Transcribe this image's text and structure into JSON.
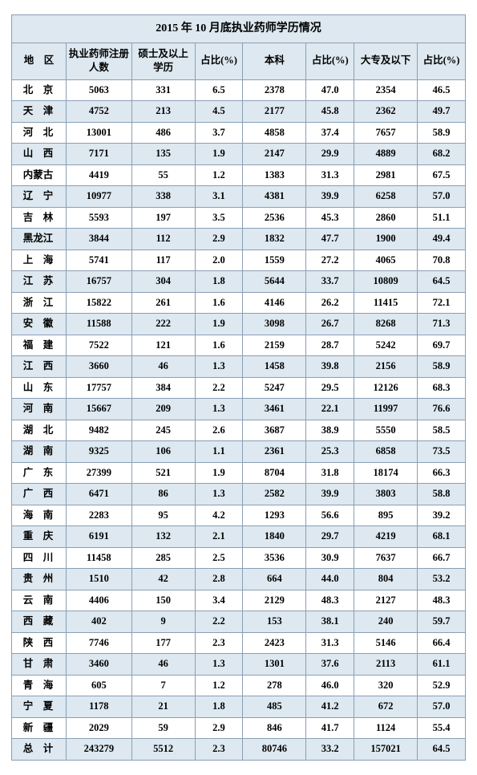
{
  "title": "2015 年 10 月底执业药师学历情况",
  "columns": [
    "地　区",
    "执业药师注册人数",
    "硕士及以上学历",
    "占比(%)",
    "本科",
    "占比(%)",
    "大专及以下",
    "占比(%)"
  ],
  "rows": [
    {
      "region": "北　京",
      "spaced": false,
      "total": "5063",
      "masters": "331",
      "mpct": "6.5",
      "bachelor": "2378",
      "bpct": "47.0",
      "below": "2354",
      "blpct": "46.5"
    },
    {
      "region": "天　津",
      "spaced": false,
      "total": "4752",
      "masters": "213",
      "mpct": "4.5",
      "bachelor": "2177",
      "bpct": "45.8",
      "below": "2362",
      "blpct": "49.7"
    },
    {
      "region": "河　北",
      "spaced": false,
      "total": "13001",
      "masters": "486",
      "mpct": "3.7",
      "bachelor": "4858",
      "bpct": "37.4",
      "below": "7657",
      "blpct": "58.9"
    },
    {
      "region": "山　西",
      "spaced": false,
      "total": "7171",
      "masters": "135",
      "mpct": "1.9",
      "bachelor": "2147",
      "bpct": "29.9",
      "below": "4889",
      "blpct": "68.2"
    },
    {
      "region": "内蒙古",
      "spaced": true,
      "total": "4419",
      "masters": "55",
      "mpct": "1.2",
      "bachelor": "1383",
      "bpct": "31.3",
      "below": "2981",
      "blpct": "67.5"
    },
    {
      "region": "辽　宁",
      "spaced": false,
      "total": "10977",
      "masters": "338",
      "mpct": "3.1",
      "bachelor": "4381",
      "bpct": "39.9",
      "below": "6258",
      "blpct": "57.0"
    },
    {
      "region": "吉　林",
      "spaced": false,
      "total": "5593",
      "masters": "197",
      "mpct": "3.5",
      "bachelor": "2536",
      "bpct": "45.3",
      "below": "2860",
      "blpct": "51.1"
    },
    {
      "region": "黑龙江",
      "spaced": true,
      "total": "3844",
      "masters": "112",
      "mpct": "2.9",
      "bachelor": "1832",
      "bpct": "47.7",
      "below": "1900",
      "blpct": "49.4"
    },
    {
      "region": "上　海",
      "spaced": false,
      "total": "5741",
      "masters": "117",
      "mpct": "2.0",
      "bachelor": "1559",
      "bpct": "27.2",
      "below": "4065",
      "blpct": "70.8"
    },
    {
      "region": "江　苏",
      "spaced": false,
      "total": "16757",
      "masters": "304",
      "mpct": "1.8",
      "bachelor": "5644",
      "bpct": "33.7",
      "below": "10809",
      "blpct": "64.5"
    },
    {
      "region": "浙　江",
      "spaced": false,
      "total": "15822",
      "masters": "261",
      "mpct": "1.6",
      "bachelor": "4146",
      "bpct": "26.2",
      "below": "11415",
      "blpct": "72.1"
    },
    {
      "region": "安　徽",
      "spaced": false,
      "total": "11588",
      "masters": "222",
      "mpct": "1.9",
      "bachelor": "3098",
      "bpct": "26.7",
      "below": "8268",
      "blpct": "71.3"
    },
    {
      "region": "福　建",
      "spaced": false,
      "total": "7522",
      "masters": "121",
      "mpct": "1.6",
      "bachelor": "2159",
      "bpct": "28.7",
      "below": "5242",
      "blpct": "69.7"
    },
    {
      "region": "江　西",
      "spaced": false,
      "total": "3660",
      "masters": "46",
      "mpct": "1.3",
      "bachelor": "1458",
      "bpct": "39.8",
      "below": "2156",
      "blpct": "58.9"
    },
    {
      "region": "山　东",
      "spaced": false,
      "total": "17757",
      "masters": "384",
      "mpct": "2.2",
      "bachelor": "5247",
      "bpct": "29.5",
      "below": "12126",
      "blpct": "68.3"
    },
    {
      "region": "河　南",
      "spaced": false,
      "total": "15667",
      "masters": "209",
      "mpct": "1.3",
      "bachelor": "3461",
      "bpct": "22.1",
      "below": "11997",
      "blpct": "76.6"
    },
    {
      "region": "湖　北",
      "spaced": false,
      "total": "9482",
      "masters": "245",
      "mpct": "2.6",
      "bachelor": "3687",
      "bpct": "38.9",
      "below": "5550",
      "blpct": "58.5"
    },
    {
      "region": "湖　南",
      "spaced": false,
      "total": "9325",
      "masters": "106",
      "mpct": "1.1",
      "bachelor": "2361",
      "bpct": "25.3",
      "below": "6858",
      "blpct": "73.5"
    },
    {
      "region": "广　东",
      "spaced": false,
      "total": "27399",
      "masters": "521",
      "mpct": "1.9",
      "bachelor": "8704",
      "bpct": "31.8",
      "below": "18174",
      "blpct": "66.3"
    },
    {
      "region": "广　西",
      "spaced": false,
      "total": "6471",
      "masters": "86",
      "mpct": "1.3",
      "bachelor": "2582",
      "bpct": "39.9",
      "below": "3803",
      "blpct": "58.8"
    },
    {
      "region": "海　南",
      "spaced": false,
      "total": "2283",
      "masters": "95",
      "mpct": "4.2",
      "bachelor": "1293",
      "bpct": "56.6",
      "below": "895",
      "blpct": "39.2"
    },
    {
      "region": "重　庆",
      "spaced": false,
      "total": "6191",
      "masters": "132",
      "mpct": "2.1",
      "bachelor": "1840",
      "bpct": "29.7",
      "below": "4219",
      "blpct": "68.1"
    },
    {
      "region": "四　川",
      "spaced": false,
      "total": "11458",
      "masters": "285",
      "mpct": "2.5",
      "bachelor": "3536",
      "bpct": "30.9",
      "below": "7637",
      "blpct": "66.7"
    },
    {
      "region": "贵　州",
      "spaced": false,
      "total": "1510",
      "masters": "42",
      "mpct": "2.8",
      "bachelor": "664",
      "bpct": "44.0",
      "below": "804",
      "blpct": "53.2"
    },
    {
      "region": "云　南",
      "spaced": false,
      "total": "4406",
      "masters": "150",
      "mpct": "3.4",
      "bachelor": "2129",
      "bpct": "48.3",
      "below": "2127",
      "blpct": "48.3"
    },
    {
      "region": "西　藏",
      "spaced": false,
      "total": "402",
      "masters": "9",
      "mpct": "2.2",
      "bachelor": "153",
      "bpct": "38.1",
      "below": "240",
      "blpct": "59.7"
    },
    {
      "region": "陕　西",
      "spaced": false,
      "total": "7746",
      "masters": "177",
      "mpct": "2.3",
      "bachelor": "2423",
      "bpct": "31.3",
      "below": "5146",
      "blpct": "66.4"
    },
    {
      "region": "甘　肃",
      "spaced": false,
      "total": "3460",
      "masters": "46",
      "mpct": "1.3",
      "bachelor": "1301",
      "bpct": "37.6",
      "below": "2113",
      "blpct": "61.1"
    },
    {
      "region": "青　海",
      "spaced": false,
      "total": "605",
      "masters": "7",
      "mpct": "1.2",
      "bachelor": "278",
      "bpct": "46.0",
      "below": "320",
      "blpct": "52.9"
    },
    {
      "region": "宁　夏",
      "spaced": false,
      "total": "1178",
      "masters": "21",
      "mpct": "1.8",
      "bachelor": "485",
      "bpct": "41.2",
      "below": "672",
      "blpct": "57.0"
    },
    {
      "region": "新　疆",
      "spaced": false,
      "total": "2029",
      "masters": "59",
      "mpct": "2.9",
      "bachelor": "846",
      "bpct": "41.7",
      "below": "1124",
      "blpct": "55.4"
    },
    {
      "region": "总　计",
      "spaced": false,
      "total": "243279",
      "masters": "5512",
      "mpct": "2.3",
      "bachelor": "80746",
      "bpct": "33.2",
      "below": "157021",
      "blpct": "64.5"
    }
  ],
  "style": {
    "header_bg": "#dde8f0",
    "row_alt_bg": "#dde8f0",
    "row_bg": "#ffffff",
    "border_color": "#8a9fb5",
    "title_fontsize": 14,
    "cell_fontsize": 12.5
  }
}
